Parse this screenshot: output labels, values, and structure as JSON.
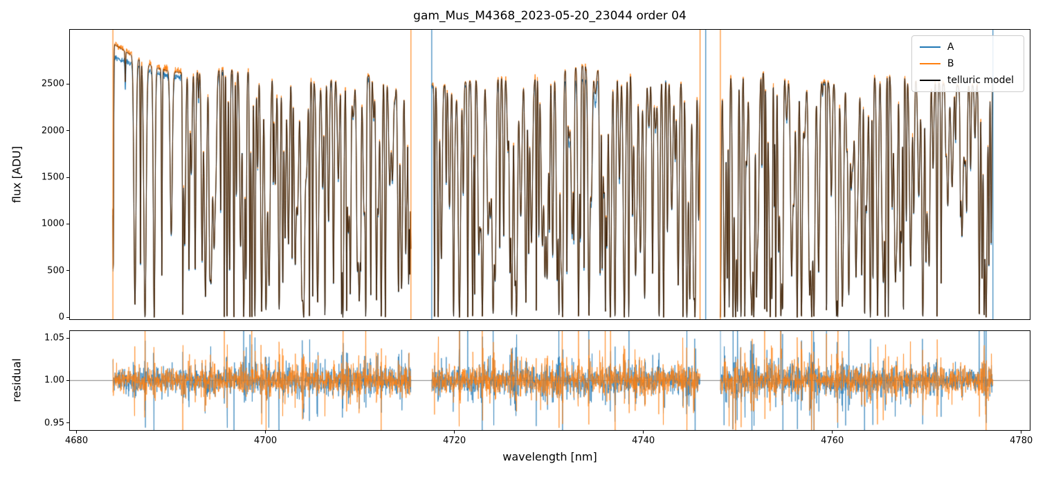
{
  "figure": {
    "title": "gam_Mus_M4368_2023-05-20_23044  order 04",
    "xlabel": "wavelength [nm]",
    "background": "#ffffff"
  },
  "chart_data": [
    {
      "type": "line",
      "panel": "flux",
      "ylabel": "flux [ADU]",
      "xlim": [
        4679.3,
        4780.9
      ],
      "ylim": [
        -20,
        3080
      ],
      "xticks": [
        4680,
        4700,
        4720,
        4740,
        4760,
        4780
      ],
      "yticks": [
        0,
        500,
        1000,
        1500,
        2000,
        2500
      ],
      "ytick_decimals": 0,
      "grid": false,
      "legend": {
        "position": "upper right",
        "entries": [
          {
            "label": "A",
            "color": "#1f77b4"
          },
          {
            "label": "B",
            "color": "#ff7f0e"
          },
          {
            "label": "telluric model",
            "color": "#000000"
          }
        ]
      },
      "segments": [
        [
          4683.85,
          4715.4
        ],
        [
          4717.6,
          4746.0
        ],
        [
          4748.15,
          4777.0
        ]
      ],
      "gaps": [
        [
          4715.4,
          4717.6
        ],
        [
          4746.0,
          4748.15
        ]
      ],
      "series": [
        {
          "name": "A",
          "color": "#1f77b4",
          "continuum_start_adu": 2750,
          "continuum_typical_adu": 2550,
          "line_min_adu": 0
        },
        {
          "name": "B",
          "color": "#ff7f0e",
          "continuum_start_adu": 2900,
          "continuum_typical_adu": 2580,
          "line_min_adu": 0
        },
        {
          "name": "telluric model",
          "color": "#000000",
          "tracks": "B",
          "scale": 0.995
        }
      ],
      "edge_spikes": [
        {
          "x": 4683.85,
          "color": "#ff7f0e"
        },
        {
          "x": 4715.4,
          "color": "#ff7f0e"
        },
        {
          "x": 4717.6,
          "color": "#1f77b4"
        },
        {
          "x": 4746.0,
          "color": "#ff7f0e"
        },
        {
          "x": 4746.6,
          "color": "#1f77b4"
        },
        {
          "x": 4748.15,
          "color": "#ff7f0e"
        },
        {
          "x": 4777.0,
          "color": "#1f77b4"
        }
      ],
      "synthesis": {
        "seed": 20230520,
        "line_spacing_nm": [
          0.12,
          0.55
        ],
        "line_width_nm": [
          0.035,
          0.125
        ],
        "depth_exponent": 0.55,
        "depth_scale": 1.18,
        "sparse_region_end": 4690.5,
        "sparse_factor": 2.6,
        "flux_noise": 0.006,
        "continuum": {
          "A_base": 2520,
          "A_edge": 230,
          "A_bump": 60,
          "B_base": 2560,
          "B_edge": 340,
          "B_bump": 190,
          "edge_scale": 5.5,
          "bump_center": 4733,
          "bump_sigma": 2.5
        }
      }
    },
    {
      "type": "line",
      "panel": "residual",
      "ylabel": "residual",
      "ylim": [
        0.9416,
        1.0583
      ],
      "yticks": [
        0.95,
        1.0,
        1.05
      ],
      "ytick_decimals": 2,
      "hline": 1.0,
      "hline_color": "#7f7f7f",
      "series": [
        {
          "name": "A residual",
          "color": "#1f77b4",
          "mean": 1.0,
          "scatter_min": 0.006,
          "scatter_max": 0.05
        },
        {
          "name": "B residual",
          "color": "#ff7f0e",
          "mean": 1.0,
          "scatter_min": 0.006,
          "scatter_max": 0.05
        }
      ],
      "synthesis": {
        "noise_base": 0.003,
        "noise_line_coupling": 0.004,
        "noise_floor_T": 0.09,
        "spike_prob": 0.003,
        "spike_mult": 3.5
      }
    }
  ]
}
